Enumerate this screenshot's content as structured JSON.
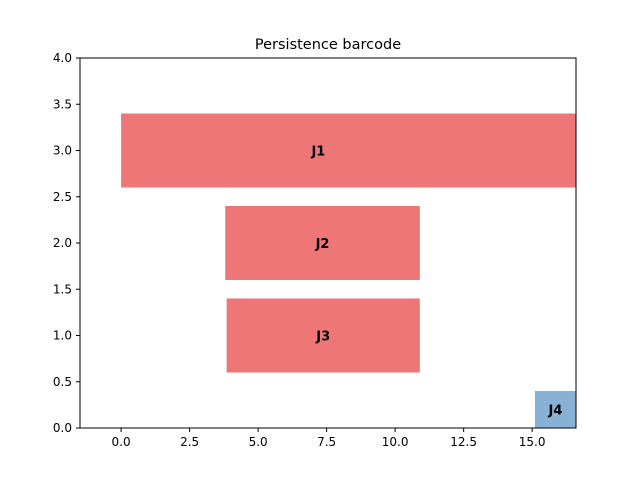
{
  "chart_data": {
    "type": "bar",
    "orientation": "horizontal-barcode",
    "title": "Persistence barcode",
    "xlabel": "",
    "ylabel": "",
    "xlim": [
      -1.5,
      16.6
    ],
    "ylim": [
      0,
      4
    ],
    "x_ticks": [
      0.0,
      2.5,
      5.0,
      7.5,
      10.0,
      12.5,
      15.0
    ],
    "x_tick_labels": [
      "0.0",
      "2.5",
      "5.0",
      "7.5",
      "10.0",
      "12.5",
      "15.0"
    ],
    "y_ticks": [
      0.0,
      0.5,
      1.0,
      1.5,
      2.0,
      2.5,
      3.0,
      3.5,
      4.0
    ],
    "y_tick_labels": [
      "0.0",
      "0.5",
      "1.0",
      "1.5",
      "2.0",
      "2.5",
      "3.0",
      "3.5",
      "4.0"
    ],
    "grid": false,
    "legend": "none",
    "bars": [
      {
        "label": "J1",
        "x_start": 0.0,
        "x_end": 16.6,
        "y_bottom": 2.6,
        "y_top": 3.4,
        "color": "#ee7677"
      },
      {
        "label": "J2",
        "x_start": 3.8,
        "x_end": 10.9,
        "y_bottom": 1.6,
        "y_top": 2.4,
        "color": "#ee7677"
      },
      {
        "label": "J3",
        "x_start": 3.85,
        "x_end": 10.9,
        "y_bottom": 0.6,
        "y_top": 1.4,
        "color": "#ee7677"
      },
      {
        "label": "J4",
        "x_start": 15.1,
        "x_end": 16.6,
        "y_bottom": 0.0,
        "y_top": 0.4,
        "color": "#87b2d6"
      }
    ]
  }
}
